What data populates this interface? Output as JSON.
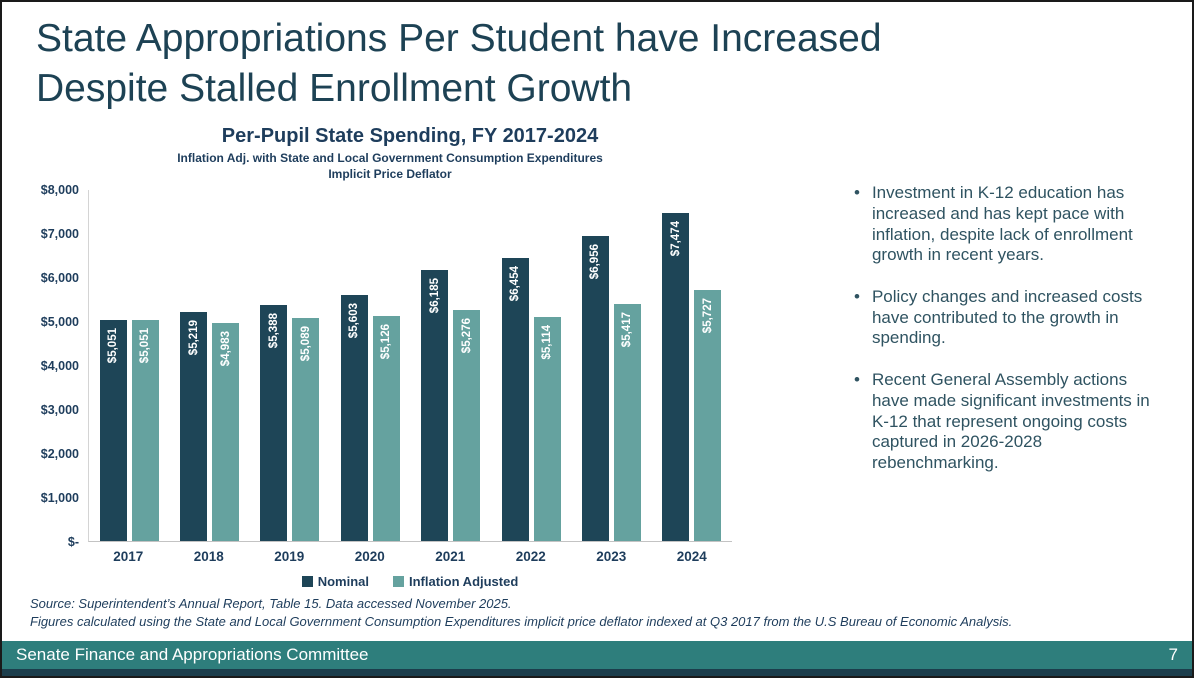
{
  "slide": {
    "title": "State Appropriations Per Student have Increased Despite Stalled Enrollment Growth",
    "bullet_marker": "•"
  },
  "chart_data": {
    "type": "bar",
    "title": "Per-Pupil State Spending, FY 2017-2024",
    "subtitle": "Inflation Adj. with State and Local Government Consumption Expenditures Implicit Price Deflator",
    "categories": [
      "2017",
      "2018",
      "2019",
      "2020",
      "2021",
      "2022",
      "2023",
      "2024"
    ],
    "series": [
      {
        "name": "Nominal",
        "color": "#1e4557",
        "values": [
          5051,
          5219,
          5388,
          5603,
          6185,
          6454,
          6956,
          7474
        ],
        "labels": [
          "$5,051",
          "$5,219",
          "$5,388",
          "$5,603",
          "$6,185",
          "$6,454",
          "$6,956",
          "$7,474"
        ]
      },
      {
        "name": "Inflation Adjusted",
        "color": "#65a29f",
        "values": [
          5051,
          4983,
          5089,
          5126,
          5276,
          5114,
          5417,
          5727
        ],
        "labels": [
          "$5,051",
          "$4,983",
          "$5,089",
          "$5,126",
          "$5,276",
          "$5,114",
          "$5,417",
          "$5,727"
        ]
      }
    ],
    "y_ticks": [
      "$8,000",
      "$7,000",
      "$6,000",
      "$5,000",
      "$4,000",
      "$3,000",
      "$2,000",
      "$1,000",
      "$-"
    ],
    "ylim": [
      0,
      8000
    ],
    "xlabel": "",
    "ylabel": "",
    "grid": false,
    "legend_position": "bottom"
  },
  "bullets": [
    "Investment in K-12 education has increased and has kept pace with inflation, despite lack of enrollment growth in recent years.",
    "Policy changes and increased costs have contributed to the growth in spending.",
    "Recent General Assembly actions have made significant investments in K-12 that represent ongoing costs captured in 2026-2028 rebenchmarking."
  ],
  "source": {
    "line1": "Source: Superintendent’s Annual Report, Table 15. Data accessed November 2025.",
    "line2": "Figures calculated using the State and Local Government Consumption Expenditures implicit price deflator indexed at Q3 2017 from the U.S Bureau of Economic Analysis."
  },
  "footer": {
    "text": "Senate Finance and Appropriations Committee",
    "page": "7",
    "bg_color": "#2e7e7c"
  }
}
